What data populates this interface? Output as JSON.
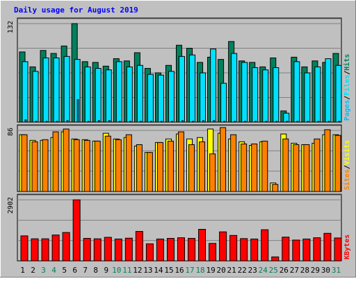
{
  "title": "Daily usage for August 2019",
  "colors": {
    "background": "#c0c0c0",
    "title": "#0000ff",
    "hits": "#00805c",
    "files": "#00e0ff",
    "pages": "#00c0ff",
    "visits": "#ffff00",
    "sites": "#ff8000",
    "kbytes": "#ff0000",
    "weekend_label": "#00805c",
    "weekday_label": "#000000"
  },
  "chart_data": [
    {
      "type": "bar",
      "panel": "hits-files-pages",
      "ymax_label": "132",
      "ylim": [
        0,
        132
      ],
      "grid": true,
      "legend": [
        {
          "text": "Pages",
          "color": "#00c0ff"
        },
        {
          "text": "Files",
          "color": "#00e0ff"
        },
        {
          "text": "Hits",
          "color": "#00805c"
        }
      ],
      "categories": [
        "1",
        "2",
        "3",
        "4",
        "5",
        "6",
        "7",
        "8",
        "9",
        "10",
        "11",
        "12",
        "13",
        "14",
        "15",
        "16",
        "17",
        "18",
        "19",
        "20",
        "21",
        "22",
        "23",
        "24",
        "25",
        "26",
        "27",
        "28",
        "29",
        "30",
        "31"
      ],
      "series": [
        {
          "name": "Hits",
          "values": [
            94,
            74,
            96,
            92,
            102,
            132,
            81,
            80,
            75,
            85,
            82,
            93,
            72,
            66,
            76,
            103,
            99,
            80,
            87,
            84,
            108,
            82,
            80,
            74,
            86,
            15,
            87,
            74,
            82,
            80,
            92
          ]
        },
        {
          "name": "Files",
          "values": [
            81,
            68,
            86,
            86,
            88,
            84,
            74,
            72,
            70,
            81,
            74,
            76,
            64,
            63,
            68,
            88,
            90,
            66,
            98,
            52,
            92,
            80,
            73,
            70,
            73,
            12,
            81,
            66,
            74,
            85,
            76
          ]
        },
        {
          "name": "Pages",
          "values": [
            3,
            1,
            1,
            1,
            2,
            30,
            1,
            2,
            2,
            1,
            1,
            1,
            1,
            1,
            1,
            2,
            1,
            2,
            2,
            1,
            1,
            1,
            1,
            1,
            1,
            1,
            1,
            1,
            1,
            1,
            1
          ]
        }
      ]
    },
    {
      "type": "bar",
      "panel": "visits-sites",
      "ymax_label": "86",
      "ylim": [
        0,
        86
      ],
      "grid": true,
      "legend": [
        {
          "text": "Sites",
          "color": "#ff8000"
        },
        {
          "text": "Visits",
          "color": "#ffff00"
        }
      ],
      "categories": [
        "1",
        "2",
        "3",
        "4",
        "5",
        "6",
        "7",
        "8",
        "9",
        "10",
        "11",
        "12",
        "13",
        "14",
        "15",
        "16",
        "17",
        "18",
        "19",
        "20",
        "21",
        "22",
        "23",
        "24",
        "25",
        "26",
        "27",
        "28",
        "29",
        "30",
        "31"
      ],
      "series": [
        {
          "name": "Visits",
          "values": [
            80,
            72,
            72,
            76,
            84,
            74,
            73,
            71,
            82,
            74,
            76,
            64,
            55,
            69,
            74,
            81,
            74,
            76,
            88,
            82,
            74,
            70,
            65,
            70,
            12,
            81,
            68,
            66,
            68,
            80,
            80
          ]
        },
        {
          "name": "Sites",
          "values": [
            80,
            70,
            73,
            84,
            88,
            73,
            72,
            71,
            78,
            73,
            80,
            66,
            55,
            69,
            71,
            84,
            66,
            70,
            53,
            90,
            80,
            67,
            67,
            71,
            10,
            74,
            66,
            66,
            74,
            87,
            79
          ]
        }
      ]
    },
    {
      "type": "bar",
      "panel": "kbytes",
      "ymax_label": "2902",
      "ylim": [
        0,
        2902
      ],
      "grid": true,
      "legend": [
        {
          "text": "KBytes",
          "color": "#ff0000"
        }
      ],
      "categories": [
        "1",
        "2",
        "3",
        "4",
        "5",
        "6",
        "7",
        "8",
        "9",
        "10",
        "11",
        "12",
        "13",
        "14",
        "15",
        "16",
        "17",
        "18",
        "19",
        "20",
        "21",
        "22",
        "23",
        "24",
        "25",
        "26",
        "27",
        "28",
        "29",
        "30",
        "31"
      ],
      "series": [
        {
          "name": "KBytes",
          "values": [
            1190,
            1050,
            1050,
            1230,
            1350,
            2902,
            1070,
            1050,
            1120,
            1040,
            1080,
            1400,
            810,
            1040,
            1070,
            1100,
            1070,
            1500,
            830,
            1380,
            1210,
            1060,
            1040,
            1480,
            190,
            1130,
            990,
            1040,
            1100,
            1310,
            1090
          ]
        }
      ]
    }
  ],
  "x_labels": [
    {
      "text": "1",
      "weekend": false
    },
    {
      "text": "2",
      "weekend": false
    },
    {
      "text": "3",
      "weekend": true
    },
    {
      "text": "4",
      "weekend": true
    },
    {
      "text": "5",
      "weekend": false
    },
    {
      "text": "6",
      "weekend": false
    },
    {
      "text": "7",
      "weekend": false
    },
    {
      "text": "8",
      "weekend": false
    },
    {
      "text": "9",
      "weekend": false
    },
    {
      "text": "10",
      "weekend": true
    },
    {
      "text": "11",
      "weekend": true
    },
    {
      "text": "12",
      "weekend": false
    },
    {
      "text": "13",
      "weekend": false
    },
    {
      "text": "14",
      "weekend": false
    },
    {
      "text": "15",
      "weekend": false
    },
    {
      "text": "16",
      "weekend": false
    },
    {
      "text": "17",
      "weekend": true
    },
    {
      "text": "18",
      "weekend": true
    },
    {
      "text": "19",
      "weekend": false
    },
    {
      "text": "20",
      "weekend": false
    },
    {
      "text": "21",
      "weekend": false
    },
    {
      "text": "22",
      "weekend": false
    },
    {
      "text": "23",
      "weekend": false
    },
    {
      "text": "24",
      "weekend": true
    },
    {
      "text": "25",
      "weekend": true
    },
    {
      "text": "26",
      "weekend": false
    },
    {
      "text": "27",
      "weekend": false
    },
    {
      "text": "28",
      "weekend": false
    },
    {
      "text": "29",
      "weekend": false
    },
    {
      "text": "30",
      "weekend": false
    },
    {
      "text": "31",
      "weekend": true
    }
  ]
}
